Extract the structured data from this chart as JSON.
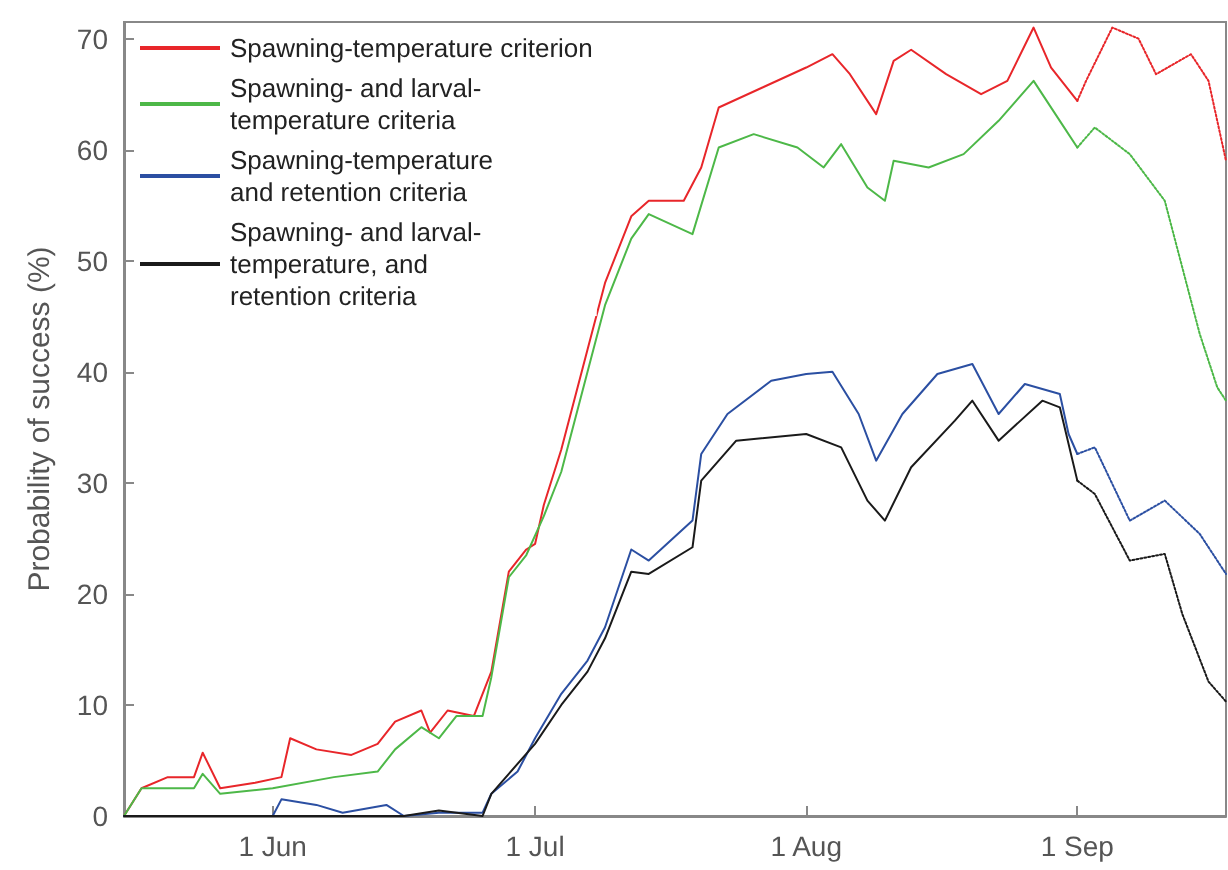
{
  "chart_data": {
    "type": "line",
    "ylabel": "Probability of success (%)",
    "xlim": [
      "--05-15",
      "--09-18"
    ],
    "ylim": [
      0,
      71.5
    ],
    "yticks": [
      0,
      10,
      20,
      30,
      40,
      50,
      60,
      70
    ],
    "xticks": [
      {
        "value": "--06-01",
        "label": "1 Jun"
      },
      {
        "value": "--07-01",
        "label": "1 Jul"
      },
      {
        "value": "--08-01",
        "label": "1 Aug"
      },
      {
        "value": "--09-01",
        "label": "1 Sep"
      }
    ],
    "grid": false,
    "legend": "top left",
    "marker": "none",
    "series": [
      {
        "name": "Spawning-temperature criterion",
        "color": "#e8262a",
        "line_style": "solid",
        "x": [
          "--05-15",
          "--05-17",
          "--05-20",
          "--05-23",
          "--05-24",
          "--05-26",
          "--05-30",
          "--06-02",
          "--06-03",
          "--06-06",
          "--06-10",
          "--06-13",
          "--06-15",
          "--06-18",
          "--06-19",
          "--06-21",
          "--06-24",
          "--06-26",
          "--06-28",
          "--06-30",
          "--07-01",
          "--07-02",
          "--07-04",
          "--07-07",
          "--07-09",
          "--07-12",
          "--07-14",
          "--07-18",
          "--07-20",
          "--07-22",
          "--07-27",
          "--08-01",
          "--08-04",
          "--08-06",
          "--08-09",
          "--08-11",
          "--08-13",
          "--08-17",
          "--08-21",
          "--08-24",
          "--08-27",
          "--08-29",
          "--09-01"
        ],
        "values": [
          0,
          2.5,
          3.5,
          3.5,
          5.7,
          2.5,
          3,
          3.5,
          7,
          6,
          5.5,
          6.5,
          8.5,
          9.5,
          7.5,
          9.5,
          9,
          13,
          22,
          24,
          24.5,
          28,
          33,
          42,
          48,
          54,
          55.4,
          55.4,
          58.4,
          63.8,
          65.6,
          67.4,
          68.6,
          66.8,
          63.2,
          68,
          69,
          66.8,
          65,
          66.2,
          71,
          67.4,
          64.4
        ]
      },
      {
        "color": "#e8262a",
        "line_style": "dotted",
        "x": [
          "--09-01",
          "--09-02",
          "--09-05",
          "--09-08",
          "--09-10",
          "--09-14",
          "--09-16",
          "--09-18"
        ],
        "values": [
          64.4,
          66.2,
          71,
          70,
          66.8,
          68.6,
          66.2,
          59
        ]
      },
      {
        "name": "Spawning- and larval-\ntemperature criteria",
        "color": "#4db848",
        "line_style": "solid",
        "x": [
          "--05-15",
          "--05-17",
          "--05-20",
          "--05-23",
          "--05-24",
          "--05-26",
          "--06-01",
          "--06-08",
          "--06-13",
          "--06-15",
          "--06-18",
          "--06-20",
          "--06-22",
          "--06-25",
          "--06-26",
          "--06-28",
          "--06-30",
          "--07-02",
          "--07-04",
          "--07-07",
          "--07-09",
          "--07-12",
          "--07-14",
          "--07-19",
          "--07-22",
          "--07-26",
          "--07-31",
          "--08-03",
          "--08-05",
          "--08-08",
          "--08-10",
          "--08-11",
          "--08-15",
          "--08-19",
          "--08-23",
          "--08-27",
          "--08-30",
          "--09-01"
        ],
        "values": [
          0,
          2.5,
          2.5,
          2.5,
          3.8,
          2,
          2.5,
          3.5,
          4,
          6,
          8,
          7,
          9,
          9,
          12.5,
          21.5,
          23.5,
          27,
          31,
          40,
          46,
          52,
          54.2,
          52.4,
          60.2,
          61.4,
          60.2,
          58.4,
          60.5,
          56.6,
          55.4,
          59,
          58.4,
          59.6,
          62.6,
          66.2,
          62.6,
          60.2
        ]
      },
      {
        "color": "#4db848",
        "line_style": "dotted",
        "x": [
          "--09-01",
          "--09-03",
          "--09-07",
          "--09-11",
          "--09-13",
          "--09-15",
          "--09-17",
          "--09-18"
        ],
        "values": [
          60.2,
          62,
          59.6,
          55.4,
          49.4,
          43.4,
          38.6,
          37.4
        ]
      },
      {
        "name": "Spawning-temperature\nand retention criteria",
        "color": "#2b4fa2",
        "line_style": "solid",
        "x": [
          "--05-15",
          "--06-01",
          "--06-02",
          "--06-06",
          "--06-09",
          "--06-14",
          "--06-16",
          "--06-20",
          "--06-25",
          "--06-26",
          "--06-29",
          "--07-01",
          "--07-04",
          "--07-07",
          "--07-09",
          "--07-12",
          "--07-14",
          "--07-19",
          "--07-20",
          "--07-23",
          "--07-28",
          "--08-01",
          "--08-04",
          "--08-07",
          "--08-09",
          "--08-12",
          "--08-16",
          "--08-20",
          "--08-23",
          "--08-26",
          "--08-30",
          "--08-31",
          "--09-01"
        ],
        "values": [
          0,
          0,
          1.5,
          1,
          0.3,
          1,
          0,
          0.3,
          0.3,
          2,
          4,
          7,
          11,
          14,
          17,
          24,
          23,
          26.6,
          32.6,
          36.2,
          39.2,
          39.8,
          40,
          36.2,
          32,
          36.2,
          39.8,
          40.7,
          36.2,
          38.9,
          38,
          34.4,
          32.6
        ]
      },
      {
        "color": "#2b4fa2",
        "line_style": "dotted",
        "x": [
          "--09-01",
          "--09-03",
          "--09-07",
          "--09-11",
          "--09-15",
          "--09-18"
        ],
        "values": [
          32.6,
          33.2,
          26.6,
          28.4,
          25.4,
          21.8
        ]
      },
      {
        "name": "Spawning- and larval-\ntemperature, and\nretention criteria",
        "color": "#1a1a1a",
        "line_style": "solid",
        "x": [
          "--05-15",
          "--06-16",
          "--06-20",
          "--06-25",
          "--06-26",
          "--07-01",
          "--07-04",
          "--07-07",
          "--07-09",
          "--07-12",
          "--07-14",
          "--07-19",
          "--07-20",
          "--07-24",
          "--08-01",
          "--08-05",
          "--08-08",
          "--08-10",
          "--08-13",
          "--08-18",
          "--08-20",
          "--08-23",
          "--08-28",
          "--08-30",
          "--09-01"
        ],
        "values": [
          0,
          0,
          0.5,
          0,
          2,
          6.5,
          10,
          13,
          16,
          22,
          21.8,
          24.2,
          30.2,
          33.8,
          34.4,
          33.2,
          28.4,
          26.6,
          31.4,
          35.6,
          37.4,
          33.8,
          37.4,
          36.8,
          30.2
        ]
      },
      {
        "color": "#1a1a1a",
        "line_style": "dotted",
        "x": [
          "--09-01",
          "--09-03",
          "--09-07",
          "--09-11",
          "--09-13",
          "--09-16",
          "--09-18"
        ],
        "values": [
          30.2,
          29,
          23,
          23.6,
          18.2,
          12.1,
          10.3
        ]
      }
    ]
  }
}
